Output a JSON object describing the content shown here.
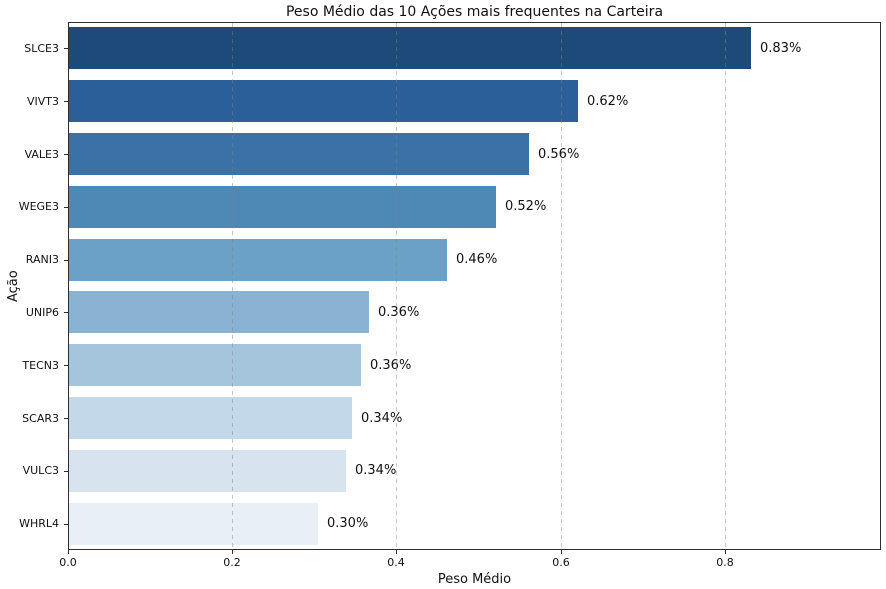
{
  "chart_data": {
    "type": "bar",
    "orientation": "horizontal",
    "title": "Peso Médio das 10 Ações mais frequentes na Carteira",
    "xlabel": "Peso Médio",
    "ylabel": "Ação",
    "categories": [
      "SLCE3",
      "VIVT3",
      "VALE3",
      "WEGE3",
      "RANI3",
      "UNIP6",
      "TECN3",
      "SCAR3",
      "VULC3",
      "WHRL4"
    ],
    "values": [
      0.83,
      0.62,
      0.56,
      0.52,
      0.46,
      0.365,
      0.356,
      0.345,
      0.337,
      0.303
    ],
    "value_labels": [
      "0.83%",
      "0.62%",
      "0.56%",
      "0.52%",
      "0.46%",
      "0.36%",
      "0.36%",
      "0.34%",
      "0.34%",
      "0.30%"
    ],
    "bar_colors": [
      "#1e4a79",
      "#2a5f9a",
      "#3a72a8",
      "#4e88b4",
      "#6ba1c7",
      "#8ab3d3",
      "#a5c5dc",
      "#c3d8e9",
      "#d8e3f0",
      "#e9eff7"
    ],
    "xtick_labels": [
      "0.0",
      "0.2",
      "0.4",
      "0.6",
      "0.8"
    ],
    "xtick_values": [
      0.0,
      0.2,
      0.4,
      0.6,
      0.8
    ],
    "xlim": [
      0,
      0.99
    ],
    "grid": "vertical-dashed",
    "grid_color": "#cccccc",
    "spine_color": "#2e2e2e",
    "background_color": "#ffffff",
    "legend": null
  }
}
